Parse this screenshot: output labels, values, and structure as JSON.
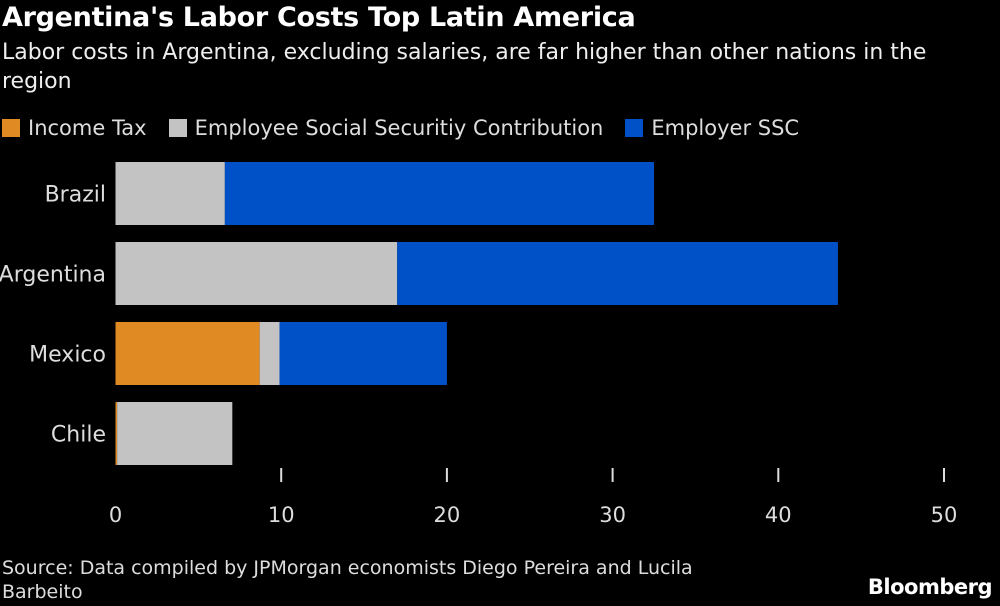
{
  "chart_data": {
    "type": "bar",
    "orientation": "horizontal",
    "stacked": true,
    "title": "Argentina's Labor Costs Top Latin America",
    "subtitle": "Labor costs in Argentina, excluding salaries, are far higher than other nations in the region",
    "categories": [
      "Brazil",
      "Argentina",
      "Mexico",
      "Chile"
    ],
    "series": [
      {
        "name": "Income Tax",
        "color": "#e08a24",
        "values": [
          0,
          0,
          8.7,
          0.1
        ]
      },
      {
        "name": "Employee Social Securitiy Contribution",
        "color": "#c3c3c3",
        "values": [
          6.6,
          17.0,
          1.2,
          6.95
        ]
      },
      {
        "name": "Employer SSC",
        "color": "#0050c8",
        "values": [
          25.9,
          26.6,
          10.1,
          0
        ]
      }
    ],
    "xlim": [
      0,
      50
    ],
    "xticks": [
      "0",
      "10",
      "20",
      "30",
      "40",
      "50"
    ],
    "legend_position": "top",
    "grid": false,
    "source": "Source: Data compiled by JPMorgan economists Diego Pereira and Lucila Barbeito",
    "brand": "Bloomberg"
  }
}
